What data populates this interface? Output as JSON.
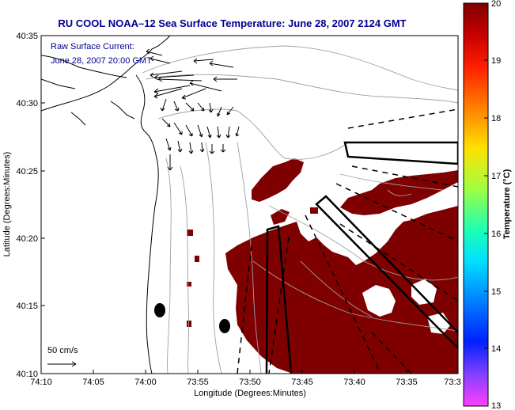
{
  "title": "RU COOL   NOAA–12  Sea Surface Temperature:  June 28, 2007 2124 GMT",
  "note_line1": "Raw Surface Current:",
  "note_line2": "June 28, 2007 20:00 GMT",
  "scale_label": "50 cm/s",
  "x_label": "Longitude (Degrees:Minutes)",
  "y_label": "Latitude (Degrees:Minutes)",
  "colorbar_label": "Temperature (°C)",
  "x_ticks": [
    "74:10",
    "74:05",
    "74:00",
    "73:55",
    "73:50",
    "73:45",
    "73:40",
    "73:35",
    "73:3"
  ],
  "y_ticks": [
    "40:35",
    "40:30",
    "40:25",
    "40:20",
    "40:15",
    "40:10"
  ],
  "colorbar_ticks": [
    "20",
    "19",
    "18",
    "17",
    "16",
    "15",
    "14",
    "13"
  ],
  "colors": {
    "sst": "#7f0000",
    "title": "#000090",
    "coast": "#000000",
    "bathy": "#a0a0a0"
  }
}
